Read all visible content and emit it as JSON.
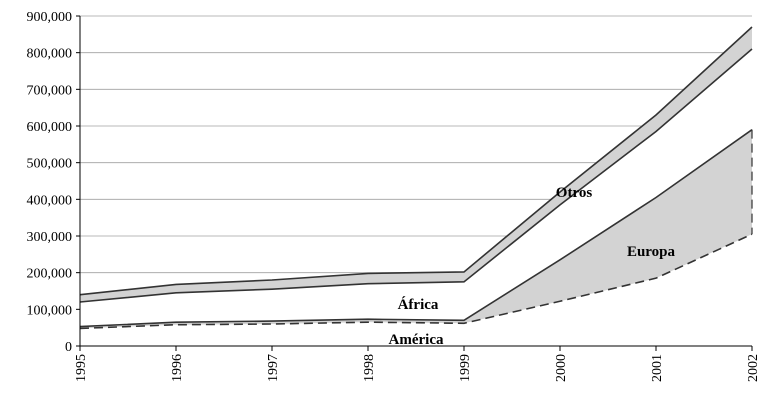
{
  "chart_data": {
    "type": "area",
    "x": [
      "1995",
      "1996",
      "1997",
      "1998",
      "1999",
      "2000",
      "2001",
      "2002"
    ],
    "series": [
      {
        "name": "América",
        "values": [
          48000,
          58000,
          60000,
          65000,
          62000,
          122000,
          185000,
          305000
        ],
        "fill": "#ffffff",
        "line_style": "dashed"
      },
      {
        "name": "Europa",
        "values": [
          53000,
          65000,
          68000,
          73000,
          70000,
          235000,
          405000,
          590000
        ],
        "fill": "#d3d3d3",
        "line_style": "solid"
      },
      {
        "name": "África",
        "values": [
          120000,
          145000,
          155000,
          170000,
          175000,
          385000,
          585000,
          810000
        ],
        "fill": "#ffffff",
        "line_style": "solid"
      },
      {
        "name": "Otros",
        "values": [
          140000,
          168000,
          180000,
          198000,
          202000,
          420000,
          630000,
          870000
        ],
        "fill": "#d3d3d3",
        "line_style": "solid"
      }
    ],
    "ylim": [
      0,
      900000
    ],
    "yticks": [
      "0",
      "100,000",
      "200,000",
      "300,000",
      "400,000",
      "500,000",
      "600,000",
      "700,000",
      "800,000",
      "900,000"
    ],
    "grid": true,
    "legend": "none (labels inside areas)"
  }
}
